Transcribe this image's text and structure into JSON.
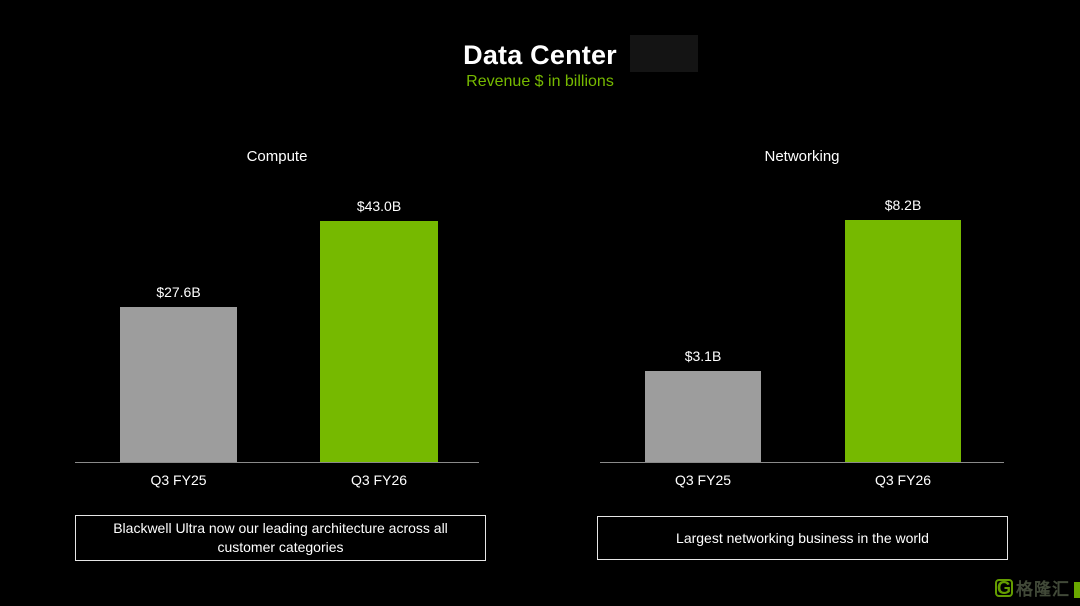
{
  "header": {
    "title": "Data Center",
    "subtitle": "Revenue $ in billions"
  },
  "colors": {
    "background": "#000000",
    "accent_green": "#76b900",
    "bar_gray": "#9d9d9d",
    "text_white": "#ffffff",
    "box_border": "#e6e6e6"
  },
  "chart_data": [
    {
      "type": "bar",
      "title": "Compute",
      "categories": [
        "Q3 FY25",
        "Q3 FY26"
      ],
      "values": [
        27.6,
        43.0
      ],
      "labels": [
        "$27.6B",
        "$43.0B"
      ],
      "bar_colors": [
        "#9d9d9d",
        "#76b900"
      ],
      "ylim": [
        0,
        50
      ],
      "grid": false,
      "legend": "none",
      "annotation": "Blackwell Ultra now our leading architecture across all customer categories"
    },
    {
      "type": "bar",
      "title": "Networking",
      "categories": [
        "Q3 FY25",
        "Q3 FY26"
      ],
      "values": [
        3.1,
        8.2
      ],
      "labels": [
        "$3.1B",
        "$8.2B"
      ],
      "bar_colors": [
        "#9d9d9d",
        "#76b900"
      ],
      "ylim": [
        0,
        9.5
      ],
      "grid": false,
      "legend": "none",
      "annotation": "Largest networking business in the world"
    }
  ],
  "watermark": {
    "logo": "G",
    "text": "格隆汇"
  }
}
